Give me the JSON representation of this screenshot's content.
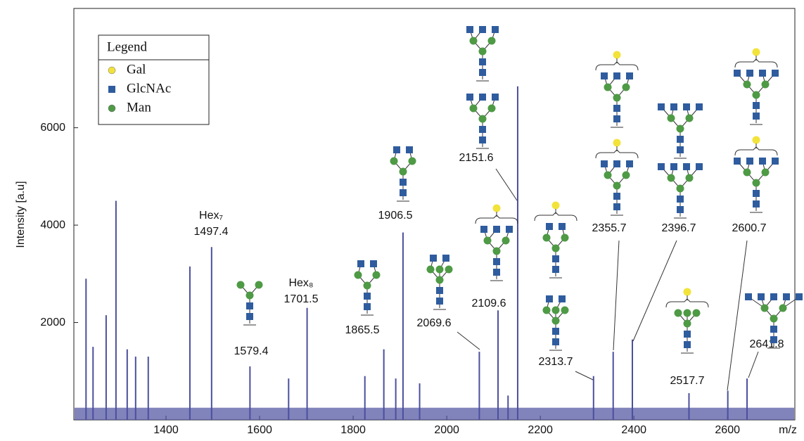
{
  "chart_data": {
    "type": "stick",
    "color": "#4b4f9e",
    "y_label": "Intensity [a.u]",
    "x_label": "m/z",
    "xlim": [
      1203,
      2744
    ],
    "ylim": [
      0,
      8450
    ],
    "xticks": [
      1400,
      1600,
      1800,
      2000,
      2200,
      2400,
      2600
    ],
    "yticks": [
      2000,
      4000,
      6000
    ],
    "noise_level": 250,
    "x": [
      1229,
      1244,
      1272,
      1293,
      1317,
      1335,
      1362,
      1451,
      1497.4,
      1579.4,
      1662,
      1701.5,
      1825,
      1865.5,
      1891,
      1906.5,
      1942,
      2069.6,
      2109.6,
      2131,
      2151.6,
      2313.7,
      2355.7,
      2396.7,
      2517.7,
      2600.7,
      2641.8
    ],
    "values": [
      2900,
      1500,
      2150,
      4500,
      1450,
      1300,
      1300,
      3150,
      3550,
      1100,
      850,
      2300,
      900,
      1450,
      850,
      3850,
      750,
      1400,
      2250,
      500,
      6850,
      900,
      1400,
      1650,
      550,
      600,
      850
    ],
    "annotations": [
      {
        "lines": [
          "Hex₇",
          "1497.4"
        ]
      },
      {
        "lines": [
          "1579.4"
        ]
      },
      {
        "lines": [
          "Hex₈",
          "1701.5"
        ]
      },
      {
        "lines": [
          "1865.5"
        ]
      },
      {
        "lines": [
          "1906.5"
        ]
      },
      {
        "lines": [
          "2069.6"
        ]
      },
      {
        "lines": [
          "2109.6"
        ]
      },
      {
        "lines": [
          "2151.6"
        ]
      },
      {
        "lines": [
          "2313.7"
        ]
      },
      {
        "lines": [
          "2355.7"
        ]
      },
      {
        "lines": [
          "2396.7"
        ]
      },
      {
        "lines": [
          "2600.7"
        ]
      },
      {
        "lines": [
          "2517.7"
        ]
      },
      {
        "lines": [
          "2641.8"
        ]
      }
    ],
    "legend": {
      "title": "Legend",
      "items": [
        {
          "name": "Gal",
          "color": "#f2e33a",
          "shape": "circle"
        },
        {
          "name": "GlcNAc",
          "color": "#2f5c9e",
          "shape": "square"
        },
        {
          "name": "Man",
          "color": "#4e9a45",
          "shape": "circle"
        }
      ]
    }
  }
}
